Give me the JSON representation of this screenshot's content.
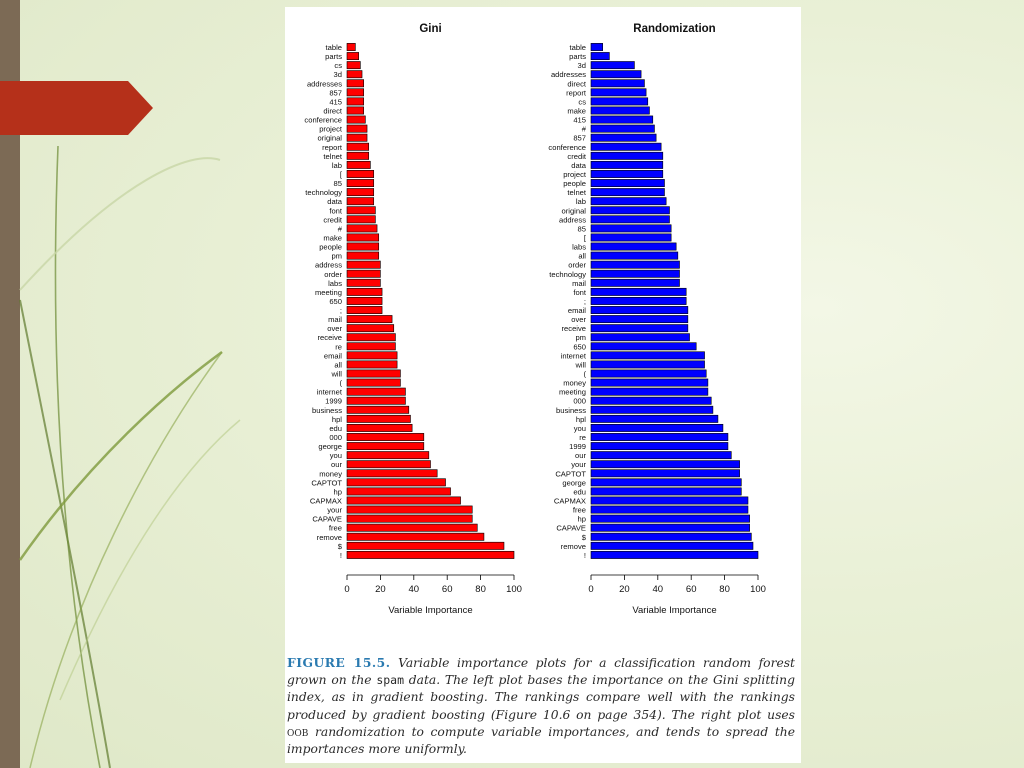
{
  "colors": {
    "gini_bar": "#ff0000",
    "randomization_bar": "#0000ff",
    "caption_label": "#2a7ab0",
    "accent_arrow": "#b5301a"
  },
  "chart_data": [
    {
      "type": "bar",
      "orientation": "horizontal",
      "title": "Gini",
      "xlabel": "Variable Importance",
      "ylabel": "",
      "xlim": [
        0,
        100
      ],
      "xticks": [
        "0",
        "20",
        "40",
        "60",
        "80",
        "100"
      ],
      "categories": [
        "table",
        "parts",
        "cs",
        "3d",
        "addresses",
        "857",
        "415",
        "direct",
        "conference",
        "project",
        "original",
        "report",
        "telnet",
        "lab",
        "[",
        "85",
        "technology",
        "data",
        "font",
        "credit",
        "#",
        "make",
        "people",
        "pm",
        "address",
        "order",
        "labs",
        "meeting",
        "650",
        ";",
        "mail",
        "over",
        "receive",
        "re",
        "email",
        "all",
        "will",
        "(",
        "internet",
        "1999",
        "business",
        "hpl",
        "edu",
        "000",
        "george",
        "you",
        "our",
        "money",
        "CAPTOT",
        "hp",
        "CAPMAX",
        "your",
        "CAPAVE",
        "free",
        "remove",
        "$",
        "!"
      ],
      "values": [
        5,
        7,
        8,
        9,
        10,
        10,
        10,
        10,
        11,
        12,
        12,
        13,
        13,
        14,
        16,
        16,
        16,
        16,
        17,
        17,
        18,
        19,
        19,
        19,
        20,
        20,
        20,
        21,
        21,
        21,
        27,
        28,
        29,
        29,
        30,
        30,
        32,
        32,
        35,
        35,
        37,
        38,
        39,
        46,
        46,
        49,
        50,
        54,
        59,
        62,
        68,
        75,
        75,
        78,
        82,
        94,
        100
      ]
    },
    {
      "type": "bar",
      "orientation": "horizontal",
      "title": "Randomization",
      "xlabel": "Variable Importance",
      "ylabel": "",
      "xlim": [
        0,
        100
      ],
      "xticks": [
        "0",
        "20",
        "40",
        "60",
        "80",
        "100"
      ],
      "categories": [
        "table",
        "parts",
        "3d",
        "addresses",
        "direct",
        "report",
        "cs",
        "make",
        "415",
        "#",
        "857",
        "conference",
        "credit",
        "data",
        "project",
        "people",
        "telnet",
        "lab",
        "original",
        "address",
        "85",
        "[",
        "labs",
        "all",
        "order",
        "technology",
        "mail",
        "font",
        ";",
        "email",
        "over",
        "receive",
        "pm",
        "650",
        "internet",
        "will",
        "(",
        "money",
        "meeting",
        "000",
        "business",
        "hpl",
        "you",
        "re",
        "1999",
        "our",
        "your",
        "CAPTOT",
        "george",
        "edu",
        "CAPMAX",
        "free",
        "hp",
        "CAPAVE",
        "$",
        "remove",
        "!"
      ],
      "values": [
        7,
        11,
        26,
        30,
        32,
        33,
        34,
        35,
        37,
        38,
        39,
        42,
        43,
        43,
        43,
        44,
        44,
        45,
        47,
        47,
        48,
        48,
        51,
        52,
        53,
        53,
        53,
        57,
        57,
        58,
        58,
        58,
        59,
        63,
        68,
        68,
        69,
        70,
        70,
        72,
        73,
        76,
        79,
        82,
        82,
        84,
        89,
        89,
        90,
        90,
        94,
        94,
        95,
        95,
        96,
        97,
        100
      ]
    }
  ],
  "caption": {
    "label": "FIGURE 15.5.",
    "text_1": "Variable importance plots for a classification random forest grown on the",
    "spam_word": "spam",
    "text_2": "data. The left plot bases the importance on the Gini splitting index, as in gradient boosting. The rankings compare well with the rankings produced by gradient boosting (Figure 10.6 on page 354). The right plot uses",
    "oob_word": "oob",
    "text_3": "randomization to compute variable importances, and tends to spread the importances more uniformly."
  }
}
